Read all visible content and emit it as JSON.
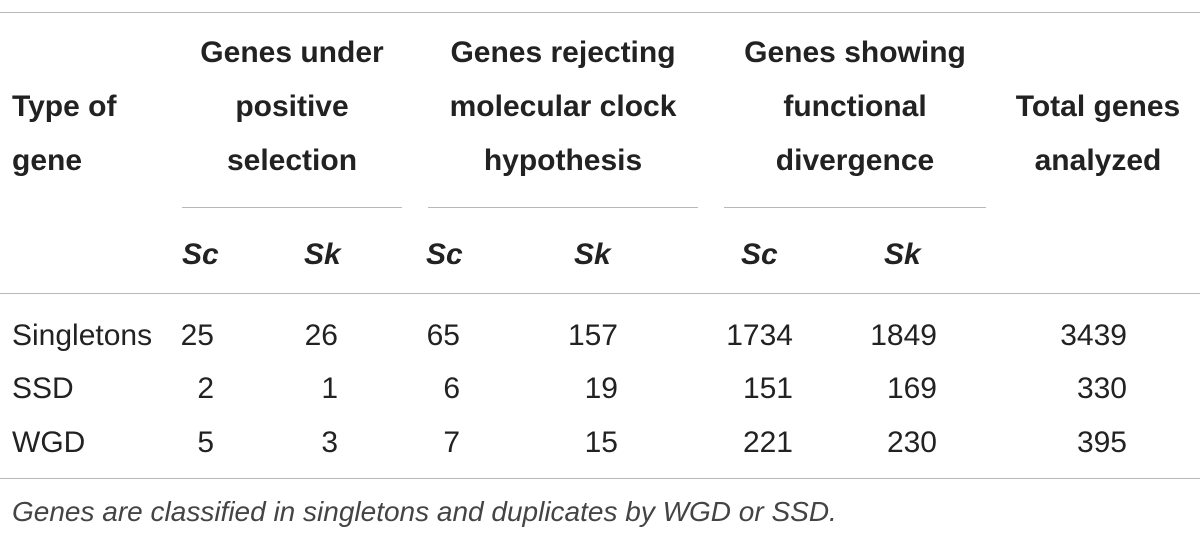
{
  "table": {
    "headers": {
      "type": "Type of gene",
      "positive_selection": "Genes under positive selection",
      "molecular_clock": "Genes rejecting molecular clock hypothesis",
      "functional_divergence": "Genes showing functional divergence",
      "total": "Total genes analyzed"
    },
    "subheaders": {
      "sc": "Sc",
      "sk": "Sk"
    },
    "rows": [
      {
        "type": "Singletons",
        "ps_sc": "25",
        "ps_sk": "26",
        "mc_sc": "65",
        "mc_sk": "157",
        "fd_sc": "1734",
        "fd_sk": "1849",
        "total": "3439"
      },
      {
        "type": "SSD",
        "ps_sc": "2",
        "ps_sk": "1",
        "mc_sc": "6",
        "mc_sk": "19",
        "fd_sc": "151",
        "fd_sk": "169",
        "total": "330"
      },
      {
        "type": "WGD",
        "ps_sc": "5",
        "ps_sk": "3",
        "mc_sc": "7",
        "mc_sk": "15",
        "fd_sc": "221",
        "fd_sk": "230",
        "total": "395"
      }
    ],
    "footnote": "Genes are classified in singletons and duplicates by WGD or SSD."
  }
}
